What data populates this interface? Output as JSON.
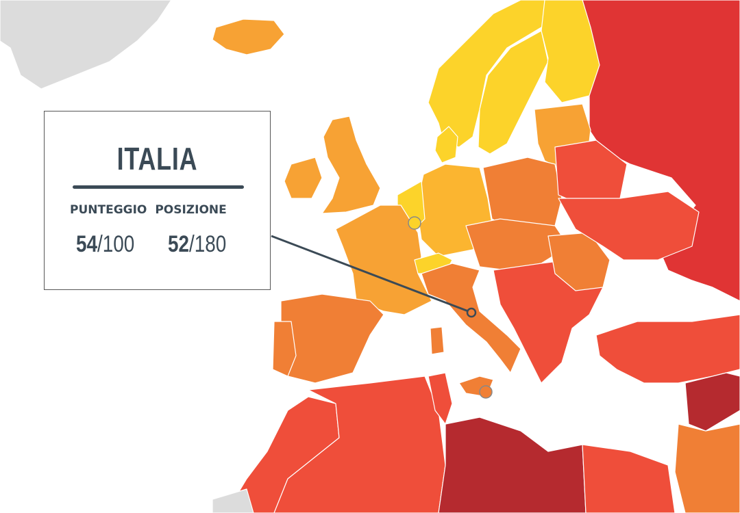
{
  "country": {
    "name": "ITALIA",
    "score_label": "PUNTEGGIO",
    "rank_label": "POSIZIONE",
    "score": "54",
    "score_max": "/100",
    "rank": "52",
    "rank_max": "/180"
  },
  "colors": {
    "no_data": "#dcdcdc",
    "very_high": "#fcd32a",
    "high": "#fbb530",
    "upper_mid": "#f7a234",
    "mid": "#f07f35",
    "lower_mid": "#ef4e3a",
    "low": "#e03434",
    "very_low": "#b52a2f",
    "text": "#3b4a56"
  }
}
